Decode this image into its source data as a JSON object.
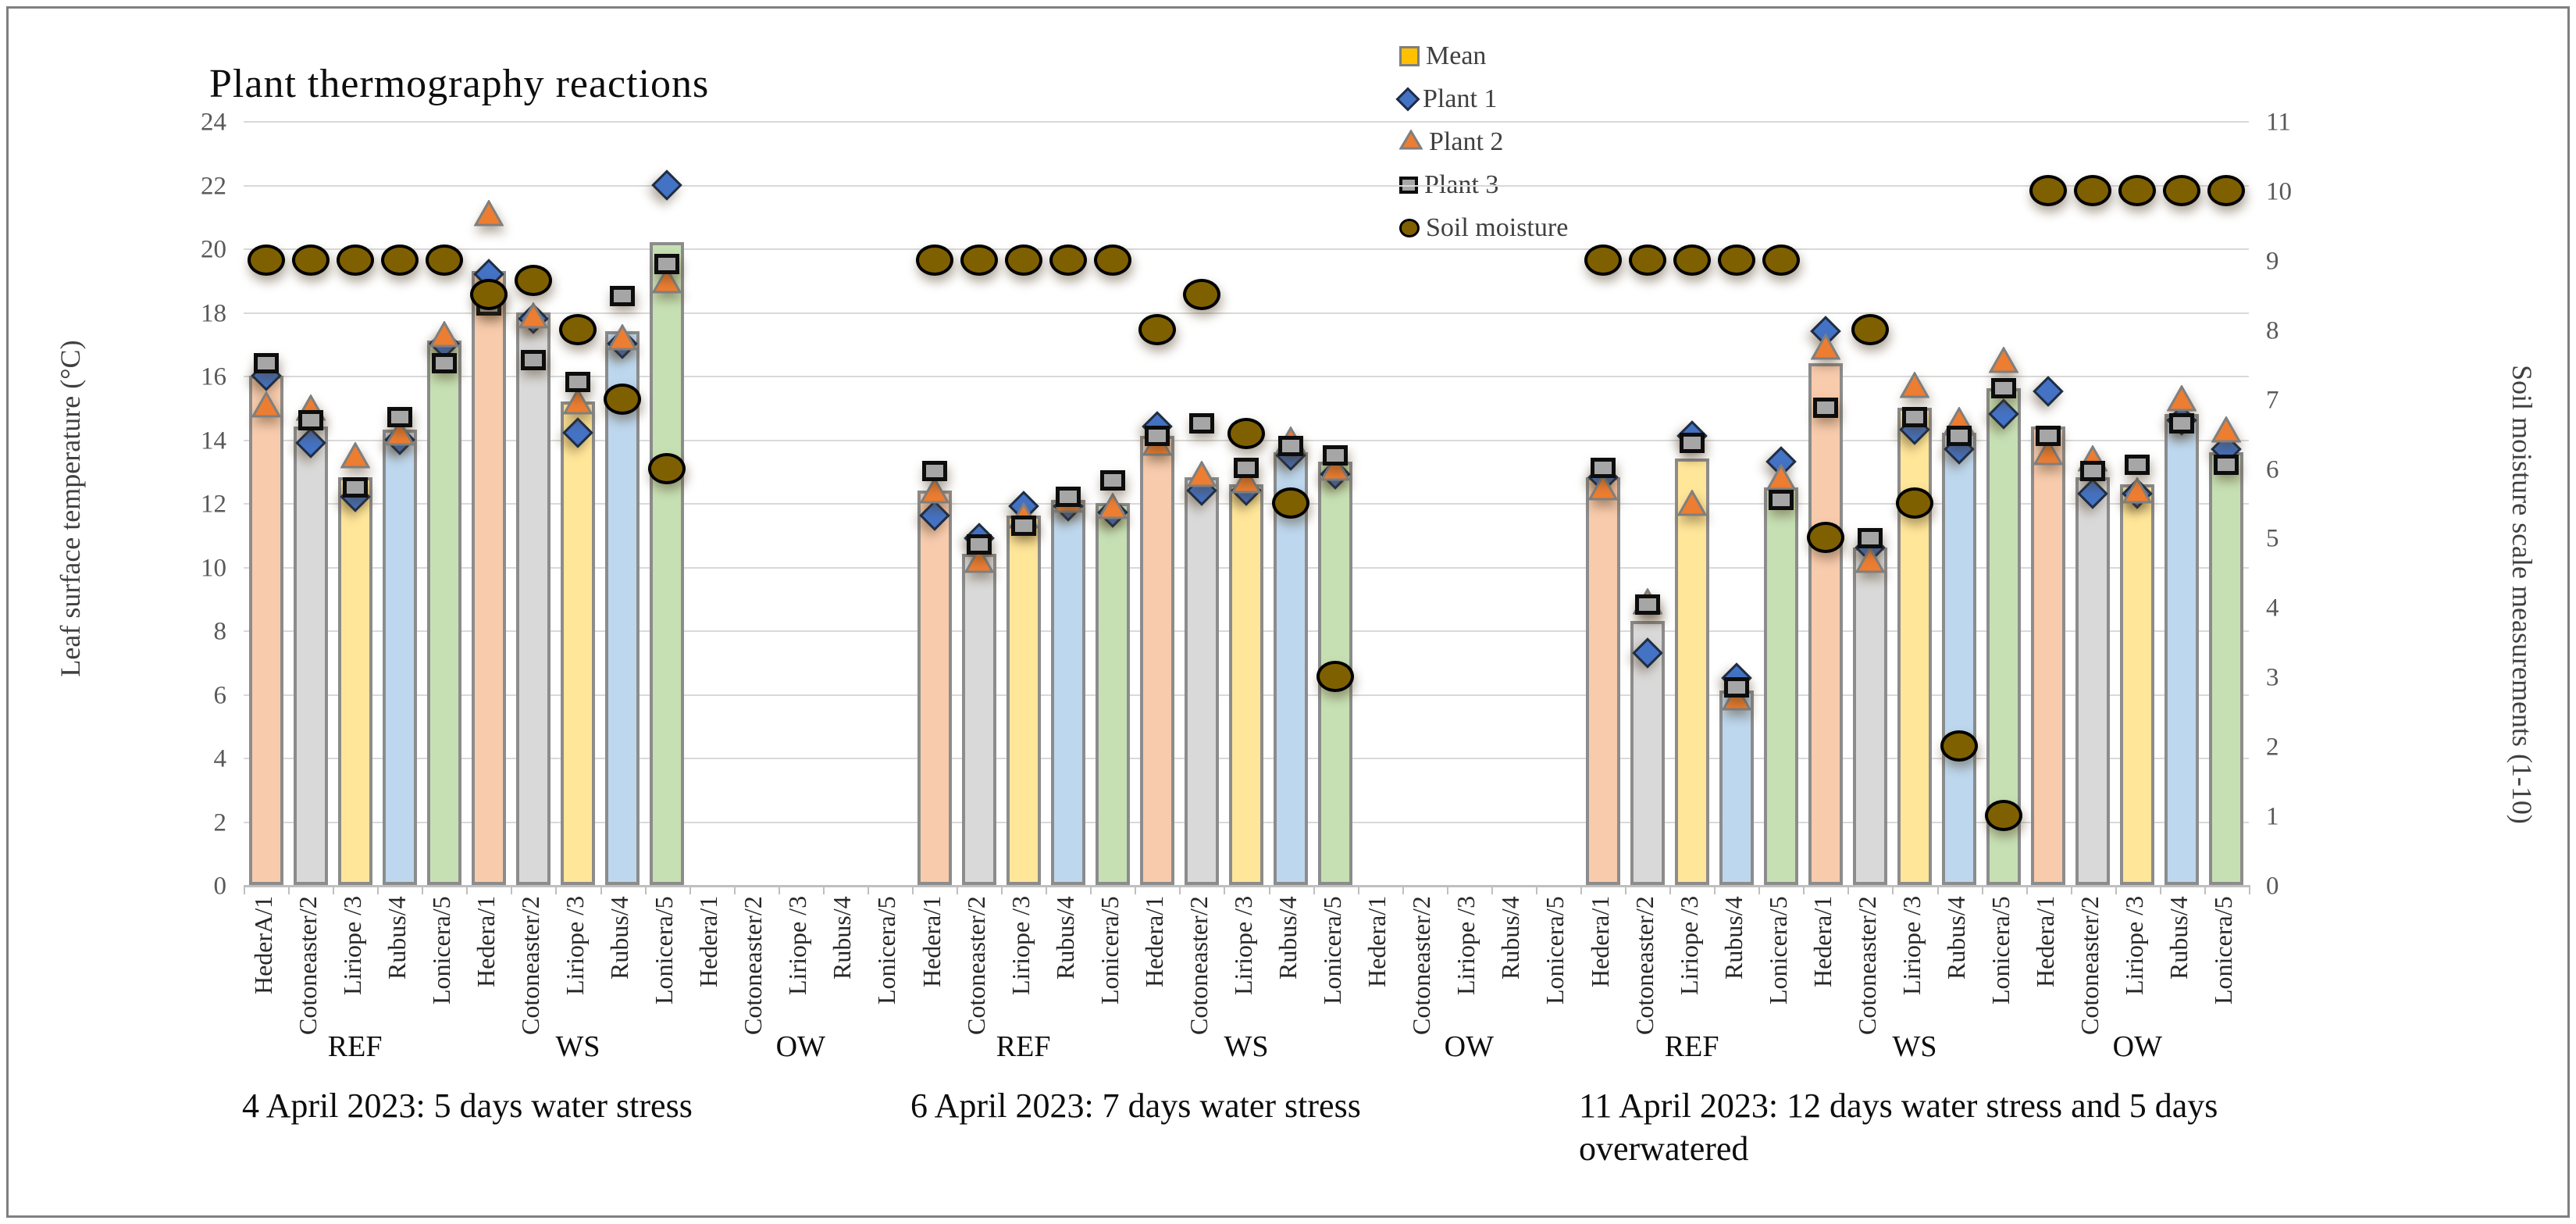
{
  "title": "Plant thermography reactions",
  "legend": {
    "mean_label": "Mean",
    "plant1_label": "Plant 1",
    "plant2_label": "Plant 2",
    "plant3_label": "Plant 3",
    "soil_label": "Soil moisture"
  },
  "colors": {
    "mean_legend": "#FFC000",
    "plant1": "#4472C4",
    "plant2": "#ED7D31",
    "plant3": "#A6A6A6",
    "soil": "#7F6000",
    "bar_fills": [
      "#F8CBAD",
      "#D9D9D9",
      "#FFE699",
      "#BDD7EE",
      "#C6E0B4"
    ],
    "bar_border": "#8C8C8C",
    "gridline": "#D9D9D9"
  },
  "chart_data": {
    "type": "bar",
    "subtype": "combo bar + scatter markers, dual y-axis",
    "title": "Plant thermography reactions",
    "left_axis": {
      "title": "Leaf surface temperature (°C)",
      "min": 0,
      "max": 24,
      "step": 2
    },
    "right_axis": {
      "title": "Soil moisture scale measurements (1-10)",
      "min": 0,
      "max": 11,
      "step": 1
    },
    "grid": true,
    "legend_position": "top-center",
    "series_meta": [
      {
        "name": "Mean",
        "type": "bar",
        "axis": "left"
      },
      {
        "name": "Plant 1",
        "type": "scatter-diamond",
        "axis": "left"
      },
      {
        "name": "Plant 2",
        "type": "scatter-triangle",
        "axis": "left"
      },
      {
        "name": "Plant 3",
        "type": "scatter-square",
        "axis": "left"
      },
      {
        "name": "Soil moisture",
        "type": "scatter-circle",
        "axis": "right"
      }
    ],
    "groups": [
      {
        "date": "4 April 2023: 5 days water stress",
        "treatments": [
          {
            "label": "REF",
            "plants": [
              {
                "name": "HederA/1",
                "mean": 16.0,
                "p1": 16.0,
                "p2": 15.1,
                "p3": 16.4,
                "soil": 9
              },
              {
                "name": "Cotoneaster/2",
                "mean": 14.4,
                "p1": 13.9,
                "p2": 15.0,
                "p3": 14.6,
                "soil": 9
              },
              {
                "name": "Liriope /3",
                "mean": 12.8,
                "p1": 12.2,
                "p2": 13.5,
                "p3": 12.5,
                "soil": 9
              },
              {
                "name": "Rubus/4",
                "mean": 14.3,
                "p1": 14.0,
                "p2": 14.2,
                "p3": 14.7,
                "soil": 9
              },
              {
                "name": "Lonicera/5",
                "mean": 17.1,
                "p1": 17.0,
                "p2": 17.3,
                "p3": 16.4,
                "soil": 9
              }
            ]
          },
          {
            "label": "WS",
            "plants": [
              {
                "name": "Hedera/1",
                "mean": 19.3,
                "p1": 19.2,
                "p2": 21.1,
                "p3": 18.2,
                "soil": 8.5
              },
              {
                "name": "Cotoneaster/2",
                "mean": 18.0,
                "p1": 17.8,
                "p2": 17.9,
                "p3": 16.5,
                "soil": 8.7
              },
              {
                "name": "Liriope /3",
                "mean": 15.2,
                "p1": 14.2,
                "p2": 15.2,
                "p3": 15.8,
                "soil": 8
              },
              {
                "name": "Rubus/4",
                "mean": 17.4,
                "p1": 17.0,
                "p2": 17.2,
                "p3": 18.5,
                "soil": 7
              },
              {
                "name": "Lonicera/5",
                "mean": 20.2,
                "p1": 22.0,
                "p2": 19.0,
                "p3": 19.5,
                "soil": 6
              }
            ]
          },
          {
            "label": "OW",
            "plants": [
              {
                "name": "Hedera/1"
              },
              {
                "name": "Cotoneaster/2"
              },
              {
                "name": "Liriope /3"
              },
              {
                "name": "Rubus/4"
              },
              {
                "name": "Lonicera/5"
              }
            ]
          }
        ]
      },
      {
        "date": "6 April 2023: 7 days water stress",
        "treatments": [
          {
            "label": "REF",
            "plants": [
              {
                "name": "Hedera/1",
                "mean": 12.4,
                "p1": 11.6,
                "p2": 12.4,
                "p3": 13.0,
                "soil": 9
              },
              {
                "name": "Cotoneaster/2",
                "mean": 10.4,
                "p1": 10.9,
                "p2": 10.2,
                "p3": 10.7,
                "soil": 9
              },
              {
                "name": "Liriope /3",
                "mean": 11.6,
                "p1": 11.9,
                "p2": 11.6,
                "p3": 11.3,
                "soil": 9
              },
              {
                "name": "Rubus/4",
                "mean": 12.1,
                "p1": 11.9,
                "p2": 12.1,
                "p3": 12.2,
                "soil": 9
              },
              {
                "name": "Lonicera/5",
                "mean": 12.0,
                "p1": 11.7,
                "p2": 11.9,
                "p3": 12.7,
                "soil": 9
              }
            ]
          },
          {
            "label": "WS",
            "plants": [
              {
                "name": "Hedera/1",
                "mean": 14.1,
                "p1": 14.4,
                "p2": 13.9,
                "p3": 14.1,
                "soil": 8
              },
              {
                "name": "Cotoneaster/2",
                "mean": 12.8,
                "p1": 12.4,
                "p2": 12.9,
                "p3": 14.5,
                "soil": 8.5
              },
              {
                "name": "Liriope /3",
                "mean": 12.6,
                "p1": 12.4,
                "p2": 12.7,
                "p3": 13.1,
                "soil": 6.5
              },
              {
                "name": "Rubus/4",
                "mean": 13.6,
                "p1": 13.5,
                "p2": 14.0,
                "p3": 13.8,
                "soil": 5.5
              },
              {
                "name": "Lonicera/5",
                "mean": 13.3,
                "p1": 12.9,
                "p2": 13.1,
                "p3": 13.5,
                "soil": 3
              }
            ]
          },
          {
            "label": "OW",
            "plants": [
              {
                "name": "Hedera/1"
              },
              {
                "name": "Cotoneaster/2"
              },
              {
                "name": "Liriope /3"
              },
              {
                "name": "Rubus/4"
              },
              {
                "name": "Lonicera/5"
              }
            ]
          }
        ]
      },
      {
        "date": "11 April 2023: 12 days water stress and 5 days overwatered",
        "treatments": [
          {
            "label": "REF",
            "plants": [
              {
                "name": "Hedera/1",
                "mean": 12.8,
                "p1": 12.8,
                "p2": 12.5,
                "p3": 13.1,
                "soil": 9
              },
              {
                "name": "Cotoneaster/2",
                "mean": 8.3,
                "p1": 7.3,
                "p2": 8.9,
                "p3": 8.8,
                "soil": 9
              },
              {
                "name": "Liriope /3",
                "mean": 13.4,
                "p1": 14.1,
                "p2": 12.0,
                "p3": 13.9,
                "soil": 9
              },
              {
                "name": "Rubus/4",
                "mean": 6.1,
                "p1": 6.5,
                "p2": 5.9,
                "p3": 6.2,
                "soil": 9
              },
              {
                "name": "Lonicera/5",
                "mean": 12.5,
                "p1": 13.3,
                "p2": 12.8,
                "p3": 12.1,
                "soil": 9
              }
            ]
          },
          {
            "label": "WS",
            "plants": [
              {
                "name": "Hedera/1",
                "mean": 16.4,
                "p1": 17.4,
                "p2": 16.9,
                "p3": 15.0,
                "soil": 5
              },
              {
                "name": "Cotoneaster/2",
                "mean": 10.6,
                "p1": 10.6,
                "p2": 10.2,
                "p3": 10.9,
                "soil": 8
              },
              {
                "name": "Liriope /3",
                "mean": 15.0,
                "p1": 14.3,
                "p2": 15.7,
                "p3": 14.7,
                "soil": 5.5
              },
              {
                "name": "Rubus/4",
                "mean": 14.2,
                "p1": 13.7,
                "p2": 14.6,
                "p3": 14.1,
                "soil": 2
              },
              {
                "name": "Lonicera/5",
                "mean": 15.6,
                "p1": 14.8,
                "p2": 16.5,
                "p3": 15.6,
                "soil": 1
              }
            ]
          },
          {
            "label": "OW",
            "plants": [
              {
                "name": "Hedera/1",
                "mean": 14.4,
                "p1": 15.5,
                "p2": 13.6,
                "p3": 14.1,
                "soil": 10
              },
              {
                "name": "Cotoneaster/2",
                "mean": 12.8,
                "p1": 12.3,
                "p2": 13.4,
                "p3": 13.0,
                "soil": 10
              },
              {
                "name": "Liriope /3",
                "mean": 12.6,
                "p1": 12.3,
                "p2": 12.4,
                "p3": 13.2,
                "soil": 10
              },
              {
                "name": "Rubus/4",
                "mean": 14.8,
                "p1": 14.6,
                "p2": 15.3,
                "p3": 14.5,
                "soil": 10
              },
              {
                "name": "Lonicera/5",
                "mean": 13.6,
                "p1": 13.7,
                "p2": 14.3,
                "p3": 13.2,
                "soil": 10
              }
            ]
          }
        ]
      }
    ]
  }
}
